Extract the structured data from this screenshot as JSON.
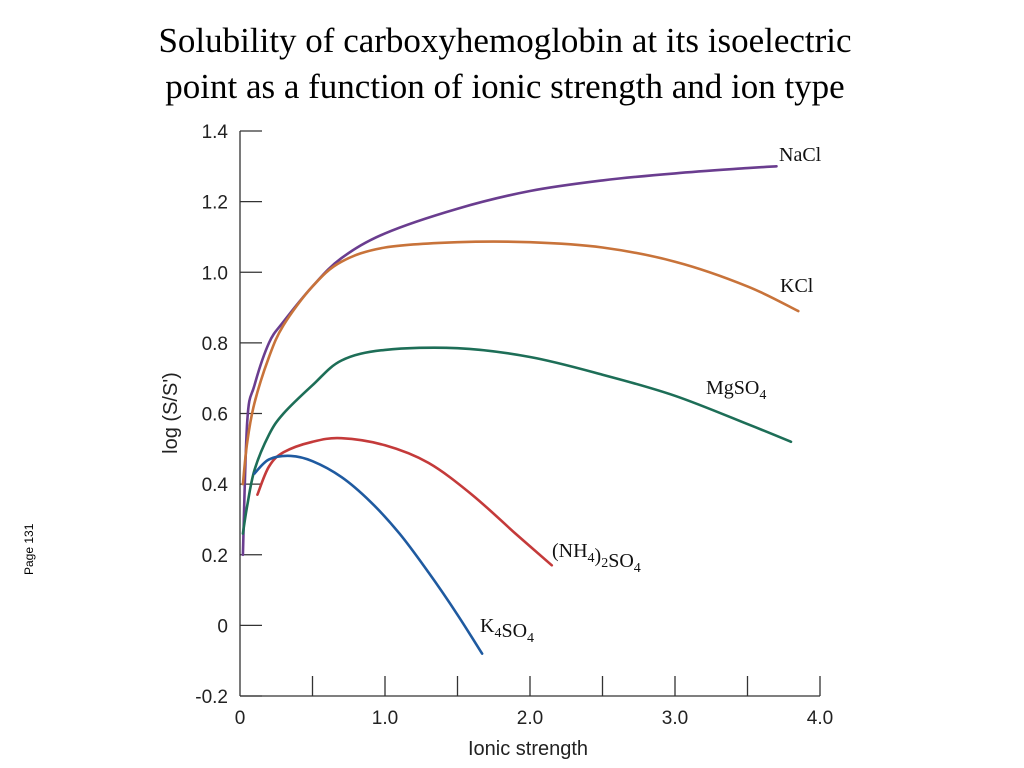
{
  "slide": {
    "title_line1": "Solubility of carboxyhemoglobin at its isoelectric",
    "title_line2": "point as a function of ionic strength and ion type",
    "page_label": "Page 131"
  },
  "chart_data": {
    "type": "line",
    "title": "Solubility of carboxyhemoglobin at its isoelectric point as a function of ionic strength and ion type",
    "xlabel": "Ionic strength",
    "ylabel": "log (S/S')",
    "xlim": [
      0,
      4.0
    ],
    "ylim": [
      -0.2,
      1.4
    ],
    "x_ticks": [
      0,
      0.5,
      1.0,
      1.5,
      2.0,
      2.5,
      3.0,
      3.5,
      4.0
    ],
    "x_tick_labels": [
      "0",
      "",
      "1.0",
      "",
      "2.0",
      "",
      "3.0",
      "",
      "4.0"
    ],
    "y_ticks": [
      -0.2,
      0,
      0.2,
      0.4,
      0.6,
      0.8,
      1.0,
      1.2,
      1.4
    ],
    "y_tick_labels": [
      "-0.2",
      "0",
      "0.2",
      "0.4",
      "0.6",
      "0.8",
      "1.0",
      "1.2",
      "1.4"
    ],
    "grid": false,
    "legend": "none (series labelled at line ends)",
    "series": [
      {
        "name": "NaCl",
        "label_parts": [
          {
            "t": "NaCl"
          }
        ],
        "color": "#6a3d8f",
        "points": [
          [
            0.02,
            0.2
          ],
          [
            0.05,
            0.58
          ],
          [
            0.1,
            0.68
          ],
          [
            0.2,
            0.8
          ],
          [
            0.3,
            0.86
          ],
          [
            0.5,
            0.96
          ],
          [
            0.7,
            1.04
          ],
          [
            1.0,
            1.11
          ],
          [
            1.5,
            1.18
          ],
          [
            2.0,
            1.23
          ],
          [
            2.5,
            1.26
          ],
          [
            3.0,
            1.28
          ],
          [
            3.5,
            1.295
          ],
          [
            3.7,
            1.3
          ]
        ]
      },
      {
        "name": "KCl",
        "label_parts": [
          {
            "t": "KCl"
          }
        ],
        "color": "#c8733a",
        "points": [
          [
            0.02,
            0.4
          ],
          [
            0.05,
            0.52
          ],
          [
            0.1,
            0.63
          ],
          [
            0.2,
            0.76
          ],
          [
            0.3,
            0.85
          ],
          [
            0.5,
            0.96
          ],
          [
            0.7,
            1.03
          ],
          [
            1.0,
            1.07
          ],
          [
            1.5,
            1.085
          ],
          [
            2.0,
            1.085
          ],
          [
            2.5,
            1.07
          ],
          [
            3.0,
            1.03
          ],
          [
            3.5,
            0.96
          ],
          [
            3.85,
            0.89
          ]
        ]
      },
      {
        "name": "MgSO4",
        "label_parts": [
          {
            "t": "MgSO"
          },
          {
            "t": "4",
            "sub": true
          }
        ],
        "color": "#1d6e57",
        "points": [
          [
            0.02,
            0.26
          ],
          [
            0.05,
            0.34
          ],
          [
            0.1,
            0.44
          ],
          [
            0.2,
            0.54
          ],
          [
            0.3,
            0.6
          ],
          [
            0.5,
            0.68
          ],
          [
            0.7,
            0.75
          ],
          [
            1.0,
            0.78
          ],
          [
            1.5,
            0.785
          ],
          [
            2.0,
            0.76
          ],
          [
            2.5,
            0.71
          ],
          [
            3.0,
            0.65
          ],
          [
            3.5,
            0.57
          ],
          [
            3.8,
            0.52
          ]
        ]
      },
      {
        "name": "(NH4)2SO4",
        "label_parts": [
          {
            "t": "(NH"
          },
          {
            "t": "4",
            "sub": true
          },
          {
            "t": ")"
          },
          {
            "t": "2",
            "sub": true
          },
          {
            "t": "SO"
          },
          {
            "t": "4",
            "sub": true
          }
        ],
        "color": "#c43a3a",
        "points": [
          [
            0.12,
            0.37
          ],
          [
            0.2,
            0.45
          ],
          [
            0.3,
            0.49
          ],
          [
            0.5,
            0.52
          ],
          [
            0.7,
            0.53
          ],
          [
            1.0,
            0.51
          ],
          [
            1.3,
            0.46
          ],
          [
            1.6,
            0.37
          ],
          [
            1.9,
            0.26
          ],
          [
            2.15,
            0.17
          ]
        ]
      },
      {
        "name": "K4SO4",
        "label_parts": [
          {
            "t": "K"
          },
          {
            "t": "4",
            "sub": true
          },
          {
            "t": "SO"
          },
          {
            "t": "4",
            "sub": true
          }
        ],
        "color": "#1f5aa0",
        "points": [
          [
            0.1,
            0.43
          ],
          [
            0.2,
            0.47
          ],
          [
            0.35,
            0.48
          ],
          [
            0.5,
            0.465
          ],
          [
            0.7,
            0.42
          ],
          [
            0.9,
            0.35
          ],
          [
            1.1,
            0.26
          ],
          [
            1.3,
            0.15
          ],
          [
            1.5,
            0.03
          ],
          [
            1.67,
            -0.08
          ]
        ]
      }
    ]
  }
}
